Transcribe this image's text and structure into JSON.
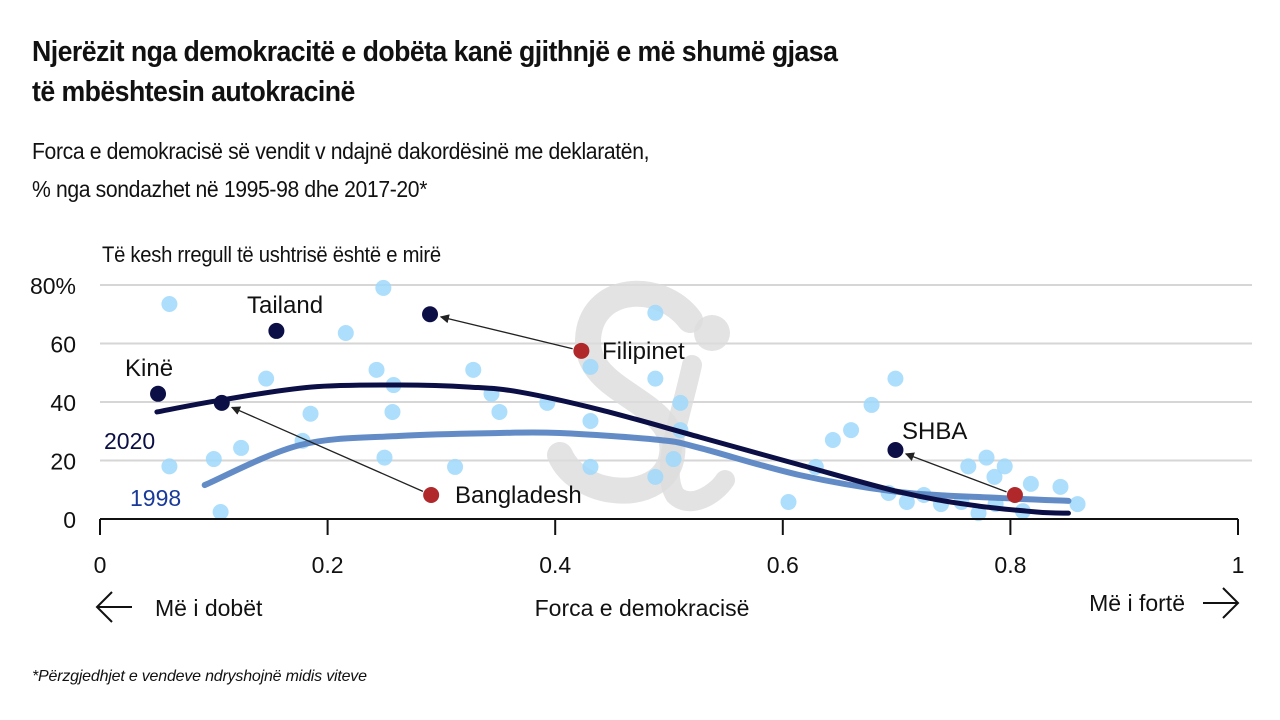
{
  "title_line1": "Njerëzit nga demokracitë e dobëta kanë gjithnjë e më shumë gjasa",
  "title_line2": "të mbështesin autokracinë",
  "subtitle_line1": "Forca e demokracisë së vendit v ndajnë dakordësinë me deklaratën,",
  "subtitle_line2": "% nga sondazhet në 1995-98 dhe 2017-20*",
  "footnote": "*Përzgjedhjet e vendeve ndryshojnë midis viteve",
  "watermark": "Si",
  "chart_data": {
    "type": "scatter",
    "ylabel": "Të kesh rregull të ushtrisë është e mirë",
    "xlabel": "Forca e demokracisë",
    "x_left_label": "Më i dobët",
    "x_right_label": "Më i fortë",
    "xlim": [
      0,
      1
    ],
    "ylim": [
      0,
      80
    ],
    "xticks": [
      "0",
      "0.2",
      "0.4",
      "0.6",
      "0.8",
      "1"
    ],
    "yticks": [
      "0",
      "20",
      "40",
      "60",
      "80%"
    ],
    "grid": "horizontal",
    "colors": {
      "points": "#9fd8fb",
      "line2020": "#0b0f45",
      "line1998": "#5b86c4",
      "label1998": "#1a3a9a",
      "highlight1998": "#b0282a",
      "highlight2020": "#0b0f45"
    },
    "points": [
      [
        0.061,
        73.5
      ],
      [
        0.061,
        18
      ],
      [
        0.1,
        20.5
      ],
      [
        0.106,
        2.4
      ],
      [
        0.124,
        24.3
      ],
      [
        0.146,
        48
      ],
      [
        0.178,
        26.7
      ],
      [
        0.185,
        36
      ],
      [
        0.216,
        63.6
      ],
      [
        0.249,
        79
      ],
      [
        0.243,
        51
      ],
      [
        0.25,
        21
      ],
      [
        0.257,
        36.6
      ],
      [
        0.258,
        45.8
      ],
      [
        0.312,
        17.8
      ],
      [
        0.328,
        51
      ],
      [
        0.344,
        42.8
      ],
      [
        0.351,
        36.6
      ],
      [
        0.393,
        39.7
      ],
      [
        0.431,
        52
      ],
      [
        0.431,
        33.5
      ],
      [
        0.431,
        17.8
      ],
      [
        0.488,
        70.5
      ],
      [
        0.488,
        48
      ],
      [
        0.488,
        14.4
      ],
      [
        0.504,
        20.5
      ],
      [
        0.51,
        30.4
      ],
      [
        0.51,
        39.7
      ],
      [
        0.605,
        5.8
      ],
      [
        0.629,
        17.8
      ],
      [
        0.644,
        27
      ],
      [
        0.66,
        30.4
      ],
      [
        0.678,
        39
      ],
      [
        0.699,
        48
      ],
      [
        0.693,
        8.9
      ],
      [
        0.709,
        5.8
      ],
      [
        0.724,
        8.2
      ],
      [
        0.739,
        5.1
      ],
      [
        0.757,
        5.8
      ],
      [
        0.763,
        18
      ],
      [
        0.779,
        21
      ],
      [
        0.786,
        14.4
      ],
      [
        0.795,
        18
      ],
      [
        0.772,
        2
      ],
      [
        0.787,
        5.1
      ],
      [
        0.811,
        2.7
      ],
      [
        0.818,
        12
      ],
      [
        0.844,
        11
      ],
      [
        0.859,
        5.1
      ]
    ],
    "series": [
      {
        "name": "2020",
        "curve": [
          [
            0.05,
            36.6
          ],
          [
            0.107,
            40.7
          ],
          [
            0.185,
            45.1
          ],
          [
            0.264,
            45.8
          ],
          [
            0.325,
            45.1
          ],
          [
            0.369,
            43.4
          ],
          [
            0.44,
            37.3
          ],
          [
            0.527,
            28
          ],
          [
            0.615,
            18.5
          ],
          [
            0.703,
            9.2
          ],
          [
            0.765,
            4.8
          ],
          [
            0.823,
            2.4
          ],
          [
            0.851,
            2
          ]
        ]
      },
      {
        "name": "1998",
        "curve": [
          [
            0.092,
            11.6
          ],
          [
            0.176,
            25.3
          ],
          [
            0.264,
            28.4
          ],
          [
            0.351,
            29.4
          ],
          [
            0.404,
            29.4
          ],
          [
            0.492,
            27
          ],
          [
            0.527,
            24.3
          ],
          [
            0.615,
            15
          ],
          [
            0.703,
            9.2
          ],
          [
            0.791,
            7.2
          ],
          [
            0.851,
            6.2
          ]
        ]
      }
    ],
    "highlights": [
      {
        "label": "Kinë",
        "p2020": [
          0.051,
          42.8
        ]
      },
      {
        "label": "Tailand",
        "p2020": [
          0.155,
          64.3
        ]
      },
      {
        "label": "Filipinet",
        "p1998": [
          0.423,
          57.5
        ],
        "p2020": [
          0.29,
          70
        ]
      },
      {
        "label": "Bangladesh",
        "p1998": [
          0.291,
          8.2
        ],
        "p2020": [
          0.107,
          39.7
        ]
      },
      {
        "label": "SHBA",
        "p1998": [
          0.804,
          8.2
        ],
        "p2020": [
          0.699,
          23.6
        ]
      }
    ]
  }
}
